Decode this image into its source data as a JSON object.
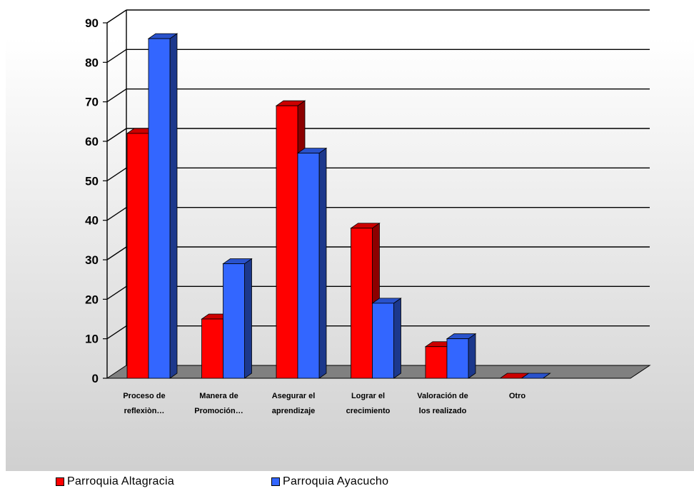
{
  "chart_data": {
    "type": "bar",
    "style": "3d-clustered-column",
    "categories": [
      [
        "Proceso de",
        "reflexiòn…"
      ],
      [
        "Manera de",
        "Promoción…"
      ],
      [
        "Asegurar el",
        "aprendizaje"
      ],
      [
        "Lograr el",
        "crecimiento"
      ],
      [
        "Valoración de",
        "los realizado"
      ],
      [
        "Otro"
      ]
    ],
    "series": [
      {
        "name": "Parroquia Altagracia",
        "color": "#ff0000",
        "values": [
          62,
          15,
          69,
          38,
          8,
          0
        ]
      },
      {
        "name": "Parroquia Ayacucho",
        "color": "#3366ff",
        "values": [
          86,
          29,
          57,
          19,
          10,
          0
        ]
      }
    ],
    "yticks": [
      "0",
      "10",
      "20",
      "30",
      "40",
      "50",
      "60",
      "70",
      "80",
      "90"
    ],
    "ylim": [
      0,
      90
    ],
    "grid": true,
    "legend": "bottom",
    "background": "gradient white to light gray"
  }
}
